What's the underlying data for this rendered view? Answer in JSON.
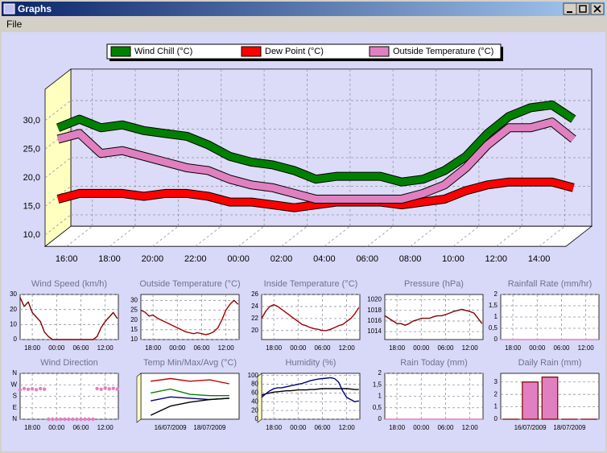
{
  "window": {
    "title": "Graphs",
    "menu": [
      "File"
    ]
  },
  "chart_data": [
    {
      "type": "line",
      "3d": true,
      "legend": "top",
      "grid": true,
      "x": [
        15,
        16,
        17,
        18,
        19,
        20,
        21,
        22,
        23,
        24,
        25,
        26,
        27,
        28,
        29,
        30,
        31,
        32,
        33,
        34,
        35,
        36,
        37,
        38,
        39
      ],
      "series": [
        {
          "name": "Wind Chill (°C)",
          "color": "#008000",
          "values": [
            27,
            28.5,
            27,
            27.5,
            26.5,
            26,
            25.5,
            24,
            22,
            21,
            20.5,
            19.5,
            18,
            18.5,
            18.5,
            18.5,
            17.5,
            18,
            19.5,
            22,
            26,
            29,
            30.5,
            31,
            28.5
          ]
        },
        {
          "name": "Dew Point (°C)",
          "color": "#ff0000",
          "values": [
            14.5,
            15.5,
            15.5,
            15.5,
            15,
            15.5,
            15.5,
            15,
            14,
            14,
            13.5,
            13,
            13.5,
            14,
            14,
            14,
            13.5,
            14,
            14.5,
            16,
            17,
            17.5,
            17.5,
            17.5,
            16.5
          ]
        },
        {
          "name": "Outside Temperature (°C)",
          "color": "#e080c0",
          "values": [
            25,
            26,
            22.5,
            23,
            22,
            21,
            20,
            19.5,
            18,
            17,
            16.5,
            15.5,
            14.5,
            14.5,
            14.5,
            14.5,
            14.5,
            15.5,
            17,
            20,
            24,
            27,
            27,
            28,
            25
          ]
        }
      ],
      "xlim": [
        15,
        39.25
      ],
      "xticks": [
        {
          "value": 16,
          "label": "16:00"
        },
        {
          "value": 18,
          "label": "18:00"
        },
        {
          "value": 20,
          "label": "20:00"
        },
        {
          "value": 22,
          "label": "22:00"
        },
        {
          "value": 24,
          "label": "00:00"
        },
        {
          "value": 26,
          "label": "02:00"
        },
        {
          "value": 28,
          "label": "04:00"
        },
        {
          "value": 30,
          "label": "06:00"
        },
        {
          "value": 32,
          "label": "08:00"
        },
        {
          "value": 34,
          "label": "10:00"
        },
        {
          "value": 36,
          "label": "12:00"
        },
        {
          "value": 38,
          "label": "14:00"
        }
      ],
      "ylim": [
        8,
        35.5
      ],
      "yticks": [
        {
          "value": 10,
          "label": "10,0"
        },
        {
          "value": 15,
          "label": "15,0"
        },
        {
          "value": 20,
          "label": "20,0"
        },
        {
          "value": 25,
          "label": "25,0"
        },
        {
          "value": 30,
          "label": "30,0"
        }
      ]
    },
    {
      "type": "line",
      "title": "Wind Speed (km/h)",
      "grid": true,
      "x": [
        15,
        16,
        17,
        18,
        19,
        20,
        21,
        22,
        23,
        24,
        25,
        26,
        27,
        28,
        29,
        30,
        31,
        32,
        33,
        34,
        35,
        36,
        37,
        38,
        39
      ],
      "series": [
        {
          "color": "#800000",
          "values": [
            28,
            22,
            25,
            18,
            15,
            12,
            5,
            2,
            0,
            0,
            0,
            0,
            0,
            0,
            0,
            0,
            0,
            0,
            0,
            2,
            8,
            12,
            15,
            18,
            14
          ]
        }
      ],
      "xlim": [
        15,
        39.25
      ],
      "xticks": [
        {
          "value": 18,
          "label": "18:00"
        },
        {
          "value": 24,
          "label": "00:00"
        },
        {
          "value": 30,
          "label": "06:00"
        },
        {
          "value": 36,
          "label": "12:00"
        }
      ],
      "ylim": [
        0,
        30
      ],
      "yticks": [
        0,
        10,
        20,
        30
      ]
    },
    {
      "type": "line",
      "title": "Outside Temperature (°C)",
      "grid": true,
      "x": [
        15,
        16,
        17,
        18,
        19,
        20,
        21,
        22,
        23,
        24,
        25,
        26,
        27,
        28,
        29,
        30,
        31,
        32,
        33,
        34,
        35,
        36,
        37,
        38,
        39
      ],
      "series": [
        {
          "color": "#a00000",
          "values": [
            25,
            24,
            22,
            22.5,
            21,
            20,
            19,
            18,
            17,
            16,
            15,
            14,
            13.5,
            13,
            13.5,
            13,
            12.5,
            13,
            14,
            16,
            20,
            25,
            28,
            30,
            28
          ]
        }
      ],
      "xlim": [
        15,
        39.25
      ],
      "xticks": [
        {
          "value": 18,
          "label": "18:00"
        },
        {
          "value": 24,
          "label": "00:00"
        },
        {
          "value": 30,
          "label": "06:00"
        },
        {
          "value": 36,
          "label": "12:00"
        }
      ],
      "ylim": [
        10,
        33
      ],
      "yticks": [
        10,
        15,
        20,
        25,
        30
      ]
    },
    {
      "type": "line",
      "title": "Inside Temperature (°C)",
      "grid": true,
      "x": [
        15,
        16,
        17,
        18,
        19,
        20,
        21,
        22,
        23,
        24,
        25,
        26,
        27,
        28,
        29,
        30,
        31,
        32,
        33,
        34,
        35,
        36,
        37,
        38,
        39
      ],
      "series": [
        {
          "color": "#a00000",
          "values": [
            22,
            23.2,
            24,
            24.3,
            24,
            23.5,
            23,
            22.5,
            22,
            21.5,
            21,
            20.8,
            20.5,
            20.3,
            20.2,
            20,
            20,
            20.2,
            20.5,
            20.8,
            21,
            21.5,
            22,
            22.8,
            23.8
          ]
        }
      ],
      "xlim": [
        15,
        39.25
      ],
      "xticks": [
        {
          "value": 18,
          "label": "18:00"
        },
        {
          "value": 24,
          "label": "00:00"
        },
        {
          "value": 30,
          "label": "06:00"
        },
        {
          "value": 36,
          "label": "12:00"
        }
      ],
      "ylim": [
        18.5,
        26
      ],
      "yticks": [
        20,
        22,
        24,
        26
      ]
    },
    {
      "type": "line",
      "title": "Pressure (hPa)",
      "grid": true,
      "x": [
        15,
        16,
        17,
        18,
        19,
        20,
        21,
        22,
        23,
        24,
        25,
        26,
        27,
        28,
        29,
        30,
        31,
        32,
        33,
        34,
        35,
        36,
        37,
        38,
        39
      ],
      "series": [
        {
          "color": "#800000",
          "values": [
            1017,
            1016.5,
            1016,
            1015.5,
            1015.5,
            1015.2,
            1015.5,
            1016,
            1016.2,
            1016.5,
            1016.5,
            1016.5,
            1016.8,
            1017,
            1017,
            1017.2,
            1017.5,
            1017.8,
            1018,
            1018.2,
            1018,
            1017.8,
            1017.5,
            1016.5,
            1015.5
          ]
        }
      ],
      "xlim": [
        15,
        39.25
      ],
      "xticks": [
        {
          "value": 18,
          "label": "18:00"
        },
        {
          "value": 24,
          "label": "00:00"
        },
        {
          "value": 30,
          "label": "06:00"
        },
        {
          "value": 36,
          "label": "12:00"
        }
      ],
      "ylim": [
        1012.5,
        1021
      ],
      "yticks": [
        1014,
        1016,
        1018,
        1020
      ]
    },
    {
      "type": "line",
      "title": "Rainfall Rate (mm/hr)",
      "grid": true,
      "x": [
        15,
        16,
        17,
        18,
        19,
        20,
        21,
        22,
        23,
        24,
        25,
        26,
        27,
        28,
        29,
        30,
        31,
        32,
        33,
        34,
        35,
        36,
        37,
        38,
        39
      ],
      "series": [
        {
          "color": "#e080c0",
          "values": [
            0,
            0,
            0,
            0,
            0,
            0,
            0,
            0,
            0,
            0,
            0,
            0,
            0,
            0,
            0,
            0,
            0,
            0,
            0,
            0,
            0,
            0,
            0,
            0,
            0
          ]
        }
      ],
      "xlim": [
        15,
        39.25
      ],
      "xticks": [
        {
          "value": 18,
          "label": "18:00"
        },
        {
          "value": 24,
          "label": "00:00"
        },
        {
          "value": 30,
          "label": "06:00"
        },
        {
          "value": 36,
          "label": "12:00"
        }
      ],
      "ylim": [
        0,
        2
      ],
      "yticks": [
        0,
        {
          "value": 0.5,
          "label": "0,5"
        },
        1,
        {
          "value": 1.5,
          "label": "1,5"
        },
        2
      ]
    },
    {
      "type": "scatter",
      "title": "Wind Direction",
      "grid": true,
      "x": [
        15,
        16,
        17,
        18,
        19,
        20,
        21,
        22,
        23,
        24,
        25,
        26,
        27,
        28,
        29,
        30,
        31,
        32,
        33,
        34,
        35,
        36,
        37,
        38,
        39
      ],
      "series": [
        {
          "color": "#e080c0",
          "values": [
            230,
            240,
            235,
            238,
            232,
            240,
            236,
            0,
            0,
            0,
            0,
            0,
            0,
            0,
            0,
            0,
            0,
            0,
            0,
            240,
            235,
            245,
            238,
            242,
            236
          ]
        }
      ],
      "xlim": [
        15,
        39.25
      ],
      "xticks": [
        {
          "value": 18,
          "label": "18:00"
        },
        {
          "value": 24,
          "label": "00:00"
        },
        {
          "value": 30,
          "label": "06:00"
        },
        {
          "value": 36,
          "label": "12:00"
        }
      ],
      "ylim": [
        0,
        360
      ],
      "yticks": [
        {
          "value": 0,
          "label": "N"
        },
        {
          "value": 90,
          "label": "E"
        },
        {
          "value": 180,
          "label": "S"
        },
        {
          "value": 270,
          "label": "W"
        },
        {
          "value": 360,
          "label": "N"
        }
      ]
    },
    {
      "type": "line",
      "title": "Temp Min/Max/Avg (°C)",
      "3d": true,
      "grid": true,
      "categories": [
        null,
        "16/07/2009",
        null,
        "18/07/2009",
        null
      ],
      "series": [
        {
          "color": "#c00000",
          "values": [
            29,
            31,
            29,
            30,
            27
          ]
        },
        {
          "color": "#008000",
          "values": [
            20,
            23,
            19,
            18,
            18
          ]
        },
        {
          "color": "#000080",
          "values": [
            14,
            17,
            16,
            15,
            16
          ]
        },
        {
          "color": "#000000",
          "values": [
            3,
            10,
            13,
            15,
            16
          ]
        }
      ],
      "ylim": [
        0,
        35
      ]
    },
    {
      "type": "line",
      "title": "Humidity (%)",
      "3d": true,
      "grid": true,
      "x": [
        15,
        16,
        17,
        18,
        19,
        20,
        21,
        22,
        23,
        24,
        25,
        26,
        27,
        28,
        29,
        30,
        31,
        32,
        33,
        34,
        35,
        36,
        37,
        38,
        39
      ],
      "series": [
        {
          "color": "#000000",
          "values": [
            55,
            58,
            60,
            62,
            63,
            64,
            65,
            65,
            66,
            67,
            67,
            67,
            68,
            68,
            69,
            70,
            70,
            70,
            70,
            70,
            70,
            70,
            69,
            68,
            68
          ]
        },
        {
          "color": "#000080",
          "values": [
            50,
            58,
            65,
            70,
            72,
            72,
            74,
            76,
            78,
            80,
            82,
            85,
            88,
            90,
            92,
            93,
            94,
            95,
            93,
            85,
            65,
            50,
            45,
            40,
            42
          ]
        }
      ],
      "xlim": [
        15,
        39.25
      ],
      "xticks": [
        {
          "value": 18,
          "label": "18:00"
        },
        {
          "value": 24,
          "label": "00:00"
        },
        {
          "value": 30,
          "label": "06:00"
        },
        {
          "value": 36,
          "label": "12:00"
        }
      ],
      "ylim": [
        0,
        105
      ],
      "yticks": [
        0,
        20,
        40,
        60,
        80,
        100
      ]
    },
    {
      "type": "line",
      "title": "Rain Today (mm)",
      "grid": true,
      "x": [
        15,
        16,
        17,
        18,
        19,
        20,
        21,
        22,
        23,
        24,
        25,
        26,
        27,
        28,
        29,
        30,
        31,
        32,
        33,
        34,
        35,
        36,
        37,
        38,
        39
      ],
      "series": [
        {
          "color": "#e080c0",
          "values": [
            0,
            0,
            0,
            0,
            0,
            0,
            0,
            0,
            0,
            0,
            0,
            0,
            0,
            0,
            0,
            0,
            0,
            0,
            0,
            0,
            0,
            0,
            0,
            0,
            0
          ]
        }
      ],
      "xlim": [
        15,
        39.25
      ],
      "xticks": [
        {
          "value": 18,
          "label": "18:00"
        },
        {
          "value": 24,
          "label": "00:00"
        },
        {
          "value": 30,
          "label": "06:00"
        },
        {
          "value": 36,
          "label": "12:00"
        }
      ],
      "ylim": [
        0,
        2
      ],
      "yticks": [
        0,
        {
          "value": 0.5,
          "label": "0,5"
        },
        1,
        {
          "value": 1.5,
          "label": "1,5"
        },
        2
      ]
    },
    {
      "type": "bar",
      "title": "Daily Rain (mm)",
      "grid": true,
      "categories": [
        null,
        "16/07/2009",
        null,
        "18/07/2009",
        null
      ],
      "values": [
        0,
        3.0,
        3.4,
        0,
        0
      ],
      "color": "#e080c0",
      "ylim": [
        0,
        3.7
      ],
      "yticks": [
        0,
        1,
        2,
        3
      ]
    }
  ]
}
